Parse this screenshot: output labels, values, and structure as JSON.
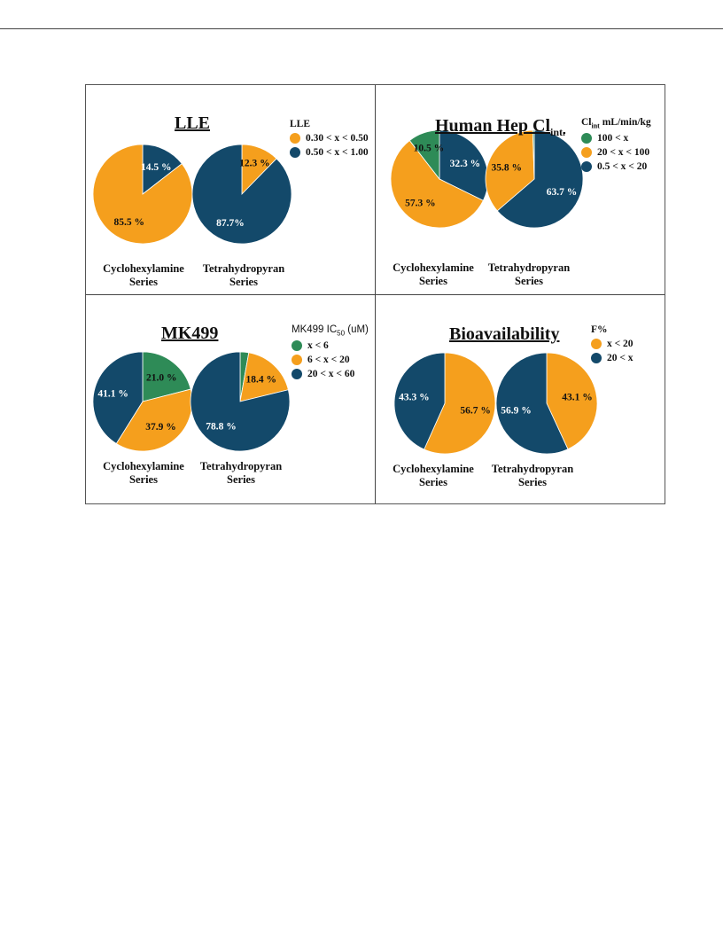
{
  "colors": {
    "green": "#2e8b57",
    "orange": "#f59f1d",
    "navy": "#13496a"
  },
  "chart_data": [
    {
      "type": "pie",
      "title": "LLE",
      "legend_title": "LLE",
      "legend": [
        {
          "label": "0.30 < x < 0.50",
          "color": "#f59f1d"
        },
        {
          "label": "0.50 < x < 1.00",
          "color": "#13496a"
        }
      ],
      "pies": [
        {
          "name": "Cyclohexylamine Series",
          "name_lines": [
            "Cyclohexylamine",
            "Series"
          ],
          "slices": [
            {
              "label": "14.5 %",
              "value": 14.5,
              "color": "#13496a"
            },
            {
              "label": "85.5 %",
              "value": 85.5,
              "color": "#f59f1d"
            }
          ]
        },
        {
          "name": "Tetrahydropyran Series",
          "name_lines": [
            "Tetrahydropyran",
            "Series"
          ],
          "slices": [
            {
              "label": "12.3 %",
              "value": 12.3,
              "color": "#f59f1d"
            },
            {
              "label": "87.7%",
              "value": 87.7,
              "color": "#13496a"
            }
          ]
        }
      ]
    },
    {
      "type": "pie",
      "title": "Human Hep Cl",
      "title_sub": "int.",
      "legend_title": "Cl",
      "legend_title_sub": "int",
      "legend_title_rest": " mL/min/kg",
      "legend": [
        {
          "label": "100 < x",
          "color": "#2e8b57"
        },
        {
          "label": "20 < x < 100",
          "color": "#f59f1d"
        },
        {
          "label": "0.5 < x < 20",
          "color": "#13496a"
        }
      ],
      "pies": [
        {
          "name": "Cyclohexylamine Series",
          "name_lines": [
            "Cyclohexylamine",
            "Series"
          ],
          "slices": [
            {
              "label": "32.3 %",
              "value": 32.3,
              "color": "#13496a"
            },
            {
              "label": "57.3 %",
              "value": 57.3,
              "color": "#f59f1d"
            },
            {
              "label": "10.5 %",
              "value": 10.5,
              "color": "#2e8b57"
            }
          ]
        },
        {
          "name": "Tetrahydropyran Series",
          "name_lines": [
            "Tetrahydropyran",
            "Series"
          ],
          "slices": [
            {
              "label": "63.7 %",
              "value": 63.7,
              "color": "#13496a"
            },
            {
              "label": "35.8 %",
              "value": 35.8,
              "color": "#f59f1d"
            },
            {
              "label": "",
              "value": 0.5,
              "color": "#2e8b57"
            }
          ]
        }
      ]
    },
    {
      "type": "pie",
      "title": "MK499",
      "legend_title": "MK499 IC",
      "legend_title_sub": "50",
      "legend_title_rest": " (uM)",
      "legend": [
        {
          "label": "x < 6",
          "color": "#2e8b57"
        },
        {
          "label": "6 < x < 20",
          "color": "#f59f1d"
        },
        {
          "label": "20 < x < 60",
          "color": "#13496a"
        }
      ],
      "pies": [
        {
          "name": "Cyclohexylamine Series",
          "name_lines": [
            "Cyclohexylamine",
            "Series"
          ],
          "slices": [
            {
              "label": "21.0 %",
              "value": 21.0,
              "color": "#2e8b57"
            },
            {
              "label": "37.9 %",
              "value": 37.9,
              "color": "#f59f1d"
            },
            {
              "label": "41.1 %",
              "value": 41.1,
              "color": "#13496a"
            }
          ]
        },
        {
          "name": "Tetrahydropyran Series",
          "name_lines": [
            "Tetrahydropyran",
            "Series"
          ],
          "slices": [
            {
              "label": "",
              "value": 2.8,
              "color": "#2e8b57"
            },
            {
              "label": "18.4 %",
              "value": 18.4,
              "color": "#f59f1d"
            },
            {
              "label": "78.8 %",
              "value": 78.8,
              "color": "#13496a"
            }
          ]
        }
      ]
    },
    {
      "type": "pie",
      "title": "Bioavailability",
      "legend_title": "F%",
      "legend": [
        {
          "label": "x < 20",
          "color": "#f59f1d"
        },
        {
          "label": "20 < x",
          "color": "#13496a"
        }
      ],
      "pies": [
        {
          "name": "Cyclohexylamine Series",
          "name_lines": [
            "Cyclohexylamine",
            "Series"
          ],
          "slices": [
            {
              "label": "56.7 %",
              "value": 56.7,
              "color": "#f59f1d"
            },
            {
              "label": "43.3 %",
              "value": 43.3,
              "color": "#13496a"
            }
          ]
        },
        {
          "name": "Tetrahydropyran Series",
          "name_lines": [
            "Tetrahydropyran",
            "Series"
          ],
          "slices": [
            {
              "label": "43.1 %",
              "value": 43.1,
              "color": "#f59f1d"
            },
            {
              "label": "56.9 %",
              "value": 56.9,
              "color": "#13496a"
            }
          ]
        }
      ]
    }
  ]
}
